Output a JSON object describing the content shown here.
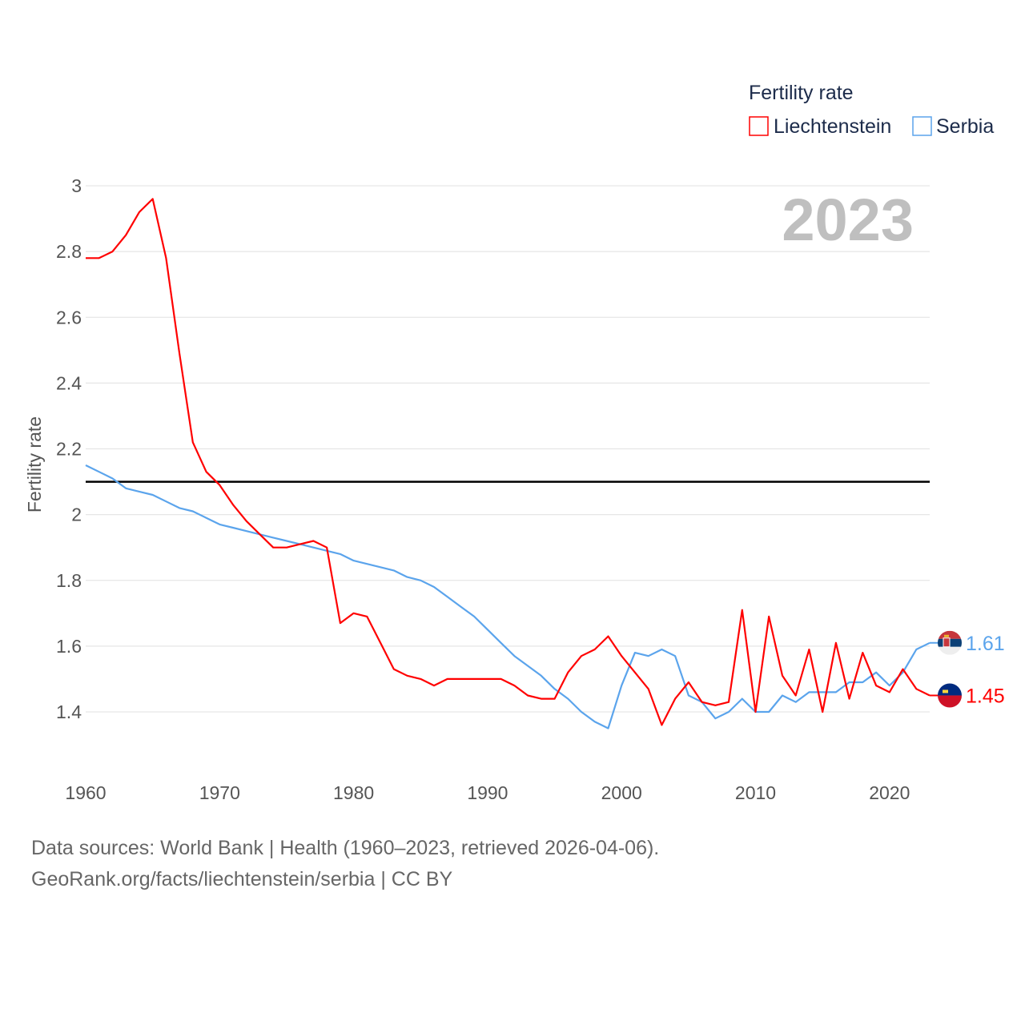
{
  "chart_data": {
    "type": "line",
    "title": "Fertility rate",
    "ylabel": "Fertility rate",
    "xlabel": "",
    "ylim": [
      1.2,
      3.0
    ],
    "xlim": [
      1960,
      2023
    ],
    "yticks": [
      3,
      2.8,
      2.6,
      2.4,
      2.2,
      2,
      1.8,
      1.6,
      1.4
    ],
    "ytick_labels": [
      "3",
      "2.8",
      "2.6",
      "2.4",
      "2.2",
      "2",
      "1.8",
      "1.6",
      "1.4"
    ],
    "xticks": [
      1960,
      1970,
      1980,
      1990,
      2000,
      2010,
      2020
    ],
    "xtick_labels": [
      "1960",
      "1970",
      "1980",
      "1990",
      "2000",
      "2010",
      "2020"
    ],
    "grid": true,
    "legend_position": "top-right",
    "year_label": "2023",
    "reference_line": 2.1,
    "x": [
      1960,
      1961,
      1962,
      1963,
      1964,
      1965,
      1966,
      1967,
      1968,
      1969,
      1970,
      1971,
      1972,
      1973,
      1974,
      1975,
      1976,
      1977,
      1978,
      1979,
      1980,
      1981,
      1982,
      1983,
      1984,
      1985,
      1986,
      1987,
      1988,
      1989,
      1990,
      1991,
      1992,
      1993,
      1994,
      1995,
      1996,
      1997,
      1998,
      1999,
      2000,
      2001,
      2002,
      2003,
      2004,
      2005,
      2006,
      2007,
      2008,
      2009,
      2010,
      2011,
      2012,
      2013,
      2014,
      2015,
      2016,
      2017,
      2018,
      2019,
      2020,
      2021,
      2022,
      2023
    ],
    "series": [
      {
        "name": "Liechtenstein",
        "color": "#ff0000",
        "end_label": "1.45",
        "values": [
          2.78,
          2.78,
          2.8,
          2.85,
          2.92,
          2.96,
          2.78,
          2.49,
          2.22,
          2.13,
          2.09,
          2.03,
          1.98,
          1.94,
          1.9,
          1.9,
          1.91,
          1.92,
          1.9,
          1.67,
          1.7,
          1.69,
          1.61,
          1.53,
          1.51,
          1.5,
          1.48,
          1.5,
          1.5,
          1.5,
          1.5,
          1.5,
          1.48,
          1.45,
          1.44,
          1.44,
          1.52,
          1.57,
          1.59,
          1.63,
          1.57,
          1.52,
          1.47,
          1.36,
          1.44,
          1.49,
          1.43,
          1.42,
          1.43,
          1.71,
          1.4,
          1.69,
          1.51,
          1.45,
          1.59,
          1.4,
          1.61,
          1.44,
          1.58,
          1.48,
          1.46,
          1.53,
          1.47,
          1.45
        ]
      },
      {
        "name": "Serbia",
        "color": "#5ba4ec",
        "end_label": "1.61",
        "values": [
          2.15,
          2.13,
          2.11,
          2.08,
          2.07,
          2.06,
          2.04,
          2.02,
          2.01,
          1.99,
          1.97,
          1.96,
          1.95,
          1.94,
          1.93,
          1.92,
          1.91,
          1.9,
          1.89,
          1.88,
          1.86,
          1.85,
          1.84,
          1.83,
          1.81,
          1.8,
          1.78,
          1.75,
          1.72,
          1.69,
          1.65,
          1.61,
          1.57,
          1.54,
          1.51,
          1.47,
          1.44,
          1.4,
          1.37,
          1.35,
          1.48,
          1.58,
          1.57,
          1.59,
          1.57,
          1.45,
          1.43,
          1.38,
          1.4,
          1.44,
          1.4,
          1.4,
          1.45,
          1.43,
          1.46,
          1.46,
          1.46,
          1.49,
          1.49,
          1.52,
          1.48,
          1.52,
          1.59,
          1.61
        ]
      }
    ]
  },
  "footer": {
    "line1": "Data sources: World Bank | Health (1960–2023, retrieved 2026-04-06).",
    "line2": "GeoRank.org/facts/liechtenstein/serbia | CC BY"
  }
}
